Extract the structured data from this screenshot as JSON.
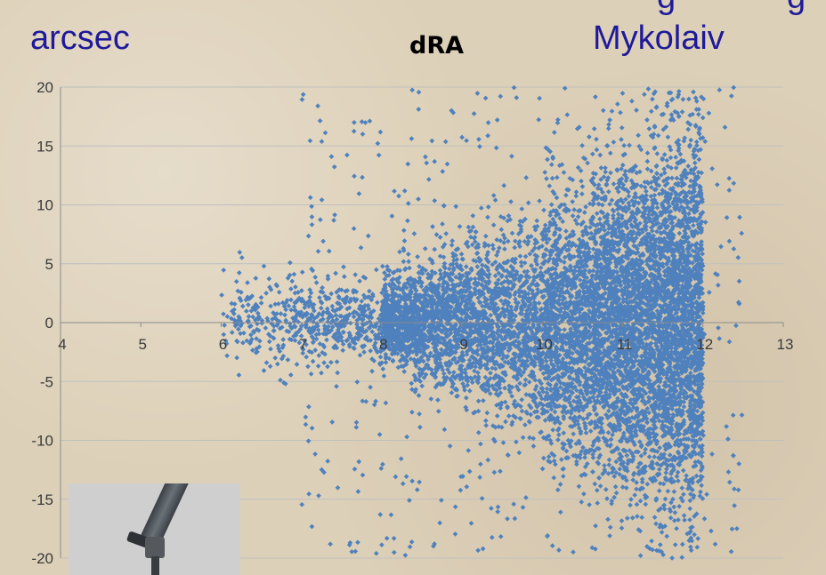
{
  "slide": {
    "unit_label": "arcsec",
    "chart_title": "dRA",
    "place_label": "Mykolaiv",
    "text_color": "#1f1a99",
    "background_color": "#ddd0b8"
  },
  "chart_data": {
    "type": "scatter",
    "title": "dRA",
    "xlabel": "",
    "ylabel": "arcsec",
    "xlim": [
      4,
      13
    ],
    "ylim": [
      -20,
      20
    ],
    "x_ticks": [
      4,
      5,
      6,
      7,
      8,
      9,
      10,
      11,
      12,
      13
    ],
    "y_ticks": [
      20,
      15,
      10,
      5,
      0,
      -5,
      -10,
      -15,
      -20
    ],
    "x_tick_labels": [
      "4",
      "5",
      "6",
      "7",
      "8",
      "9",
      "10",
      "11",
      "12",
      "13"
    ],
    "y_tick_labels": [
      "20",
      "15",
      "10",
      "5",
      "0",
      "-5",
      "-10",
      "-15",
      "-20"
    ],
    "grid": true,
    "marker_color": "#4f81bd",
    "x_axis_crosses_y_at": 0,
    "point_cloud": {
      "x_range": [
        6.0,
        12.7
      ],
      "dense_core_x_range": [
        10.0,
        12.0
      ],
      "spread_at_x8": 3,
      "spread_at_x11": 12
    }
  },
  "icons": {
    "telescope_photo": "telescope-icon"
  }
}
